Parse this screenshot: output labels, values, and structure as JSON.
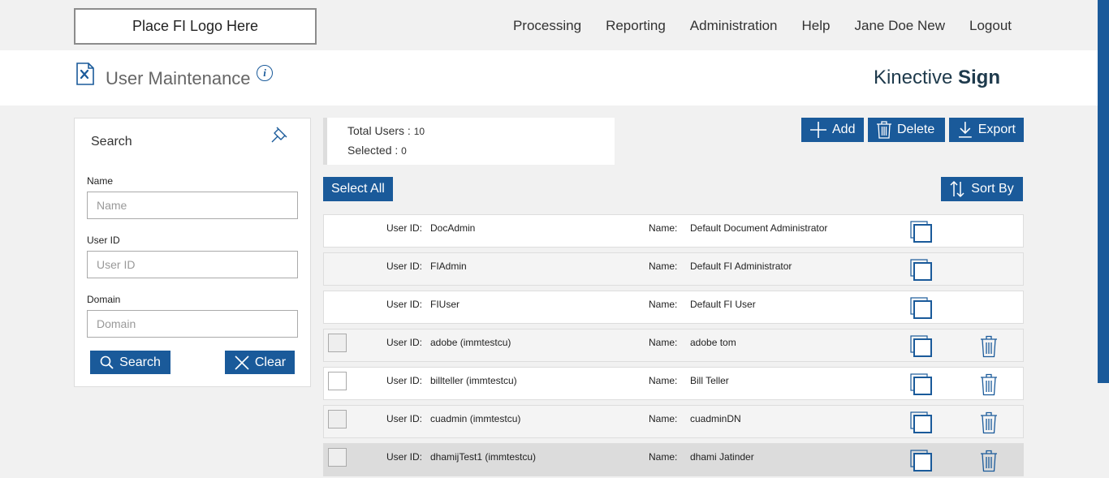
{
  "topbar": {
    "logo_text": "Place FI Logo Here",
    "nav": [
      "Processing",
      "Reporting",
      "Administration",
      "Help",
      "Jane Doe New",
      "Logout"
    ]
  },
  "header": {
    "title": "User Maintenance",
    "info_glyph": "i",
    "brand_prefix": "Kinective",
    "brand_bold": "Sign"
  },
  "search": {
    "title": "Search",
    "name_label": "Name",
    "name_placeholder": "Name",
    "userid_label": "User ID",
    "userid_placeholder": "User ID",
    "domain_label": "Domain",
    "domain_placeholder": "Domain",
    "search_button": "Search",
    "clear_button": "Clear"
  },
  "summary": {
    "total_label": "Total Users : ",
    "total_value": "10",
    "selected_label": "Selected : ",
    "selected_value": "0"
  },
  "actions": {
    "add": "Add",
    "delete": "Delete",
    "export": "Export",
    "select_all": "Select All",
    "sort_by": "Sort By"
  },
  "row_labels": {
    "user_id": "User ID:",
    "name": "Name:"
  },
  "users": [
    {
      "user_id": "DocAdmin",
      "name": "Default Document Administrator",
      "selectable": false,
      "deletable": false
    },
    {
      "user_id": "FIAdmin",
      "name": "Default FI Administrator",
      "selectable": false,
      "deletable": false
    },
    {
      "user_id": "FIUser",
      "name": "Default FI User",
      "selectable": false,
      "deletable": false
    },
    {
      "user_id": "adobe (immtestcu)",
      "name": "adobe tom",
      "selectable": true,
      "deletable": true
    },
    {
      "user_id": "billteller (immtestcu)",
      "name": "Bill Teller",
      "selectable": true,
      "deletable": true
    },
    {
      "user_id": "cuadmin (immtestcu)",
      "name": "cuadminDN",
      "selectable": true,
      "deletable": true
    },
    {
      "user_id": "dhamijTest1 (immtestcu)",
      "name": "dhami Jatinder",
      "selectable": true,
      "deletable": true
    }
  ],
  "colors": {
    "accent": "#1a5a9a",
    "brand_text": "#1e3a4c"
  },
  "icons": [
    "settings-doc-icon",
    "info-icon",
    "pin-icon",
    "search-icon",
    "close-icon",
    "plus-icon",
    "trash-icon",
    "download-icon",
    "sort-icon",
    "copy-icon"
  ]
}
